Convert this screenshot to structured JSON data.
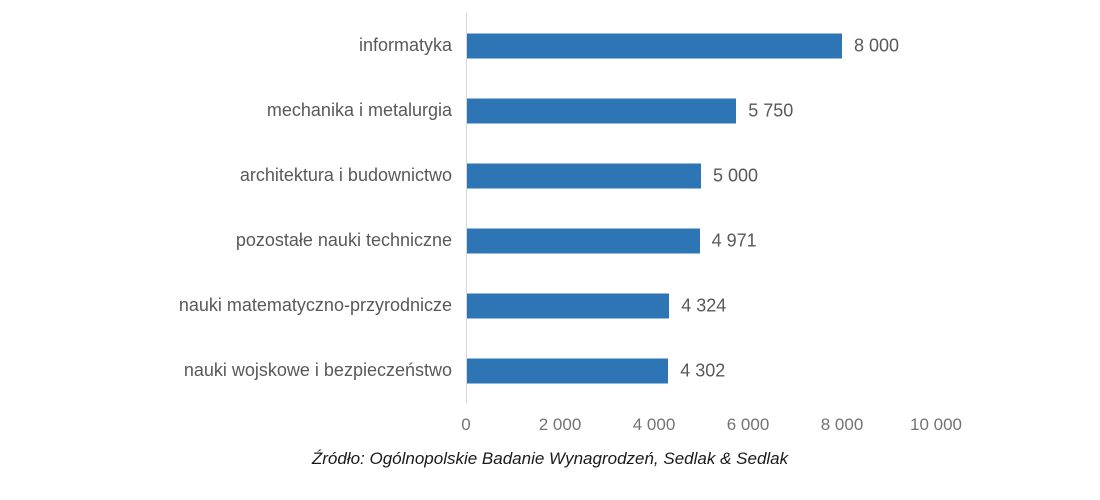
{
  "chart_data": {
    "type": "bar",
    "orientation": "horizontal",
    "categories": [
      "informatyka",
      "mechanika i metalurgia",
      "architektura i budownictwo",
      "pozostałe nauki techniczne",
      "nauki matematyczno-przyrodnicze",
      "nauki wojskowe i bezpieczeństwo"
    ],
    "values": [
      8000,
      5750,
      5000,
      4971,
      4324,
      4302
    ],
    "value_labels": [
      "8 000",
      "5 750",
      "5 000",
      "4 971",
      "4 324",
      "4 302"
    ],
    "title": "",
    "xlabel": "",
    "ylabel": "",
    "xlim": [
      0,
      10000
    ],
    "x_ticks": [
      0,
      2000,
      4000,
      6000,
      8000,
      10000
    ],
    "x_tick_labels": [
      "0",
      "2 000",
      "4 000",
      "6 000",
      "8 000",
      "10 000"
    ],
    "grid": false,
    "legend": false,
    "bar_color": "#2e75b6",
    "axis_line_color": "#d9d9d9",
    "label_color": "#595959",
    "tick_color": "#737373"
  },
  "caption": {
    "text": "Źródło: Ogólnopolskie Badanie Wynagrodzeń, Sedlak & Sedlak"
  }
}
